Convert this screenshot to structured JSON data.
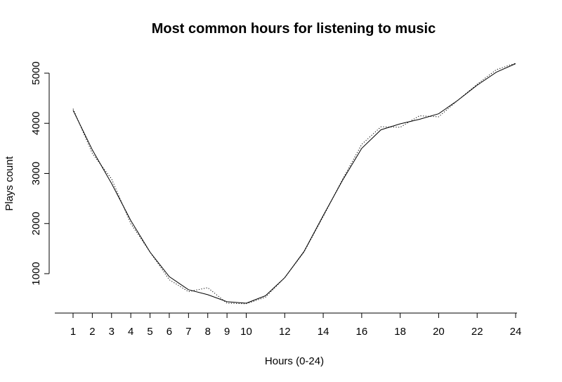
{
  "chart_data": {
    "type": "line",
    "title": "Most common hours for listening to music",
    "xlabel": "Hours (0-24)",
    "ylabel": "Plays count",
    "xlim": [
      1,
      24
    ],
    "ylim": [
      200,
      5300
    ],
    "x_ticks": [
      1,
      2,
      3,
      4,
      5,
      6,
      7,
      8,
      9,
      10,
      12,
      14,
      16,
      18,
      20,
      22,
      24
    ],
    "y_ticks": [
      1000,
      2000,
      3000,
      4000,
      5000
    ],
    "grid": false,
    "series": [
      {
        "style": "solid",
        "x": [
          1,
          2,
          3,
          4,
          5,
          6,
          7,
          8,
          9,
          10,
          11,
          12,
          13,
          14,
          15,
          16,
          17,
          18,
          19,
          20,
          21,
          22,
          23,
          24
        ],
        "y": [
          4260,
          3470,
          2800,
          2060,
          1430,
          940,
          680,
          580,
          440,
          410,
          560,
          920,
          1440,
          2160,
          2860,
          3500,
          3870,
          3990,
          4080,
          4190,
          4460,
          4760,
          5020,
          5190
        ]
      },
      {
        "style": "dotted",
        "x": [
          1,
          2,
          3,
          4,
          5,
          6,
          7,
          8,
          9,
          10,
          11,
          12,
          13,
          14,
          15,
          16,
          17,
          18,
          19,
          20,
          21,
          22,
          23,
          24
        ],
        "y": [
          4290,
          3400,
          2890,
          2000,
          1430,
          880,
          640,
          720,
          410,
          400,
          530,
          920,
          1430,
          2140,
          2880,
          3580,
          3930,
          3920,
          4150,
          4130,
          4460,
          4780,
          5070,
          5200
        ]
      }
    ]
  }
}
